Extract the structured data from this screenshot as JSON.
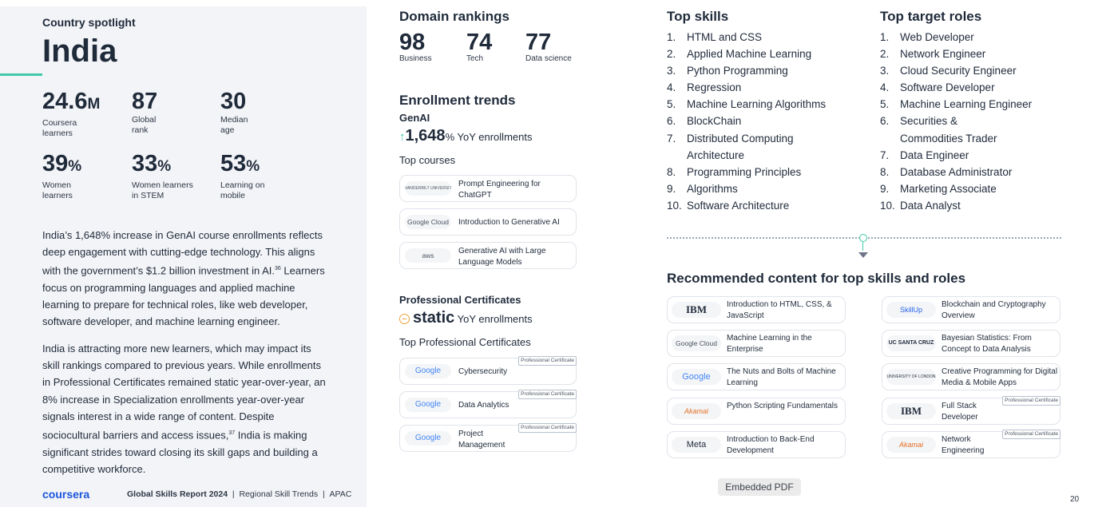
{
  "spotlight": {
    "label": "Country spotlight",
    "country": "India"
  },
  "stats": [
    {
      "value": "24.6",
      "unit": "M",
      "label": "Coursera learners"
    },
    {
      "value": "87",
      "unit": "",
      "label": "Global rank"
    },
    {
      "value": "30",
      "unit": "",
      "label": "Median age"
    },
    {
      "value": "39",
      "unit": "%",
      "label": "Women learners"
    },
    {
      "value": "33",
      "unit": "%",
      "label": "Women learners in STEM"
    },
    {
      "value": "53",
      "unit": "%",
      "label": "Learning on mobile"
    }
  ],
  "paragraphs": {
    "p1_a": "India’s 1,648% increase in GenAI course enrollments reflects deep engagement with cutting-edge technology. This aligns with the government’s $1.2 billion investment in AI.",
    "p1_sup": "36",
    "p1_b": " Learners focus on programming languages and applied machine learning to prepare for technical roles, like web developer, software developer, and machine learning engineer.",
    "p2_a": "India is attracting more new learners, which may impact its skill rankings compared to previous years. While enrollments in Professional Certificates remained static year-over-year, an 8% increase in Specialization enrollments year-over-year signals interest in a wide range of content. Despite sociocultural barriers and access issues,",
    "p2_sup": "37",
    "p2_b": " India is making significant strides toward closing its skill gaps and building a competitive workforce."
  },
  "footer": {
    "logo": "coursera",
    "report": "Global Skills Report 2024",
    "sep": "|",
    "section": "Regional Skill Trends",
    "region": "APAC",
    "page": "20"
  },
  "domain_rankings": {
    "title": "Domain rankings",
    "items": [
      {
        "value": "98",
        "label": "Business"
      },
      {
        "value": "74",
        "label": "Tech"
      },
      {
        "value": "77",
        "label": "Data science"
      }
    ]
  },
  "enrollment": {
    "title": "Enrollment trends",
    "genai_label": "GenAI",
    "genai_value": "1,648",
    "genai_unit": "%",
    "genai_suffix": "YoY enrollments",
    "top_courses_label": "Top courses",
    "courses": [
      {
        "logo": "VANDERBILT UNIVERSITY",
        "title": "Prompt Engineering for ChatGPT"
      },
      {
        "logo": "Google Cloud",
        "title": "Introduction to Generative AI"
      },
      {
        "logo": "aws",
        "title": "Generative AI with Large Language Models"
      }
    ],
    "pc_label": "Professional Certificates",
    "pc_value": "static",
    "pc_suffix": "YoY enrollments",
    "top_pc_label": "Top Professional Certificates",
    "certs": [
      {
        "logo": "Google",
        "title": "Cybersecurity",
        "badge": "Professional Certificate"
      },
      {
        "logo": "Google",
        "title": "Data Analytics",
        "badge": "Professional Certificate"
      },
      {
        "logo": "Google",
        "title": "Project Management",
        "badge": "Professional Certificate"
      }
    ]
  },
  "top_skills": {
    "title": "Top skills",
    "items": [
      "HTML and CSS",
      "Applied Machine Learning",
      "Python Programming",
      "Regression",
      "Machine Learning Algorithms",
      "BlockChain",
      "Distributed Computing Architecture",
      "Programming Principles",
      "Algorithms",
      "Software Architecture"
    ]
  },
  "top_roles": {
    "title": "Top target roles",
    "items": [
      "Web Developer",
      "Network Engineer",
      "Cloud Security Engineer",
      "Software Developer",
      "Machine Learning Engineer",
      "Securities & Commodities Trader",
      "Data Engineer",
      "Database Administrator",
      "Marketing Associate",
      "Data Analyst"
    ]
  },
  "recommended": {
    "title": "Recommended content for top skills and roles",
    "left": [
      {
        "logo": "IBM",
        "title": "Introduction to HTML, CSS, & JavaScript",
        "badge": ""
      },
      {
        "logo": "Google Cloud",
        "title": "Machine Learning in the Enterprise",
        "badge": ""
      },
      {
        "logo": "Google",
        "title": "The Nuts and Bolts of Machine Learning",
        "badge": ""
      },
      {
        "logo": "Akamai",
        "title": "Python Scripting Fundamentals",
        "badge": ""
      },
      {
        "logo": "Meta",
        "title": "Introduction to Back-End Development",
        "badge": ""
      }
    ],
    "right": [
      {
        "logo": "SkillUp",
        "title": "Blockchain and Cryptography Overview",
        "badge": ""
      },
      {
        "logo": "UC SANTA CRUZ",
        "title": "Bayesian Statistics: From Concept to Data Analysis",
        "badge": ""
      },
      {
        "logo": "UNIVERSITY OF LONDON",
        "title": "Creative Programming for Digital Media & Mobile Apps",
        "badge": ""
      },
      {
        "logo": "IBM",
        "title": "Full Stack Developer",
        "badge": "Professional Certificate"
      },
      {
        "logo": "Akamai",
        "title": "Network Engineering",
        "badge": "Professional Certificate"
      }
    ]
  },
  "viewer": {
    "embedded_label": "Embedded PDF"
  },
  "colors": {
    "accent": "#3fc9a8",
    "brand": "#1a56db",
    "static": "#f0a23b"
  }
}
